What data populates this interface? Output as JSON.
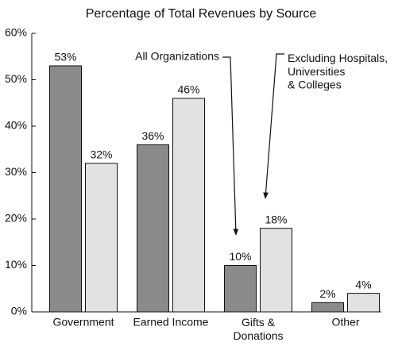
{
  "chart_data": {
    "type": "bar",
    "title": "Percentage of Total Revenues by Source",
    "categories": [
      "Government",
      "Earned Income",
      "Gifts &\nDonations",
      "Other"
    ],
    "series": [
      {
        "name": "All Organizations",
        "color": "#8a8a8a",
        "values": [
          53,
          36,
          10,
          2
        ],
        "value_labels": [
          "53%",
          "36%",
          "10%",
          "2%"
        ]
      },
      {
        "name": "Excluding Hospitals,\nUniversities\n& Colleges",
        "color": "#e2e2e2",
        "values": [
          32,
          46,
          18,
          4
        ],
        "value_labels": [
          "32%",
          "46%",
          "18%",
          "4%"
        ]
      }
    ],
    "ylim": [
      0,
      60
    ],
    "yticks": [
      {
        "value": 0,
        "label": "0%"
      },
      {
        "value": 10,
        "label": "10%"
      },
      {
        "value": 20,
        "label": "20%"
      },
      {
        "value": 30,
        "label": "30%"
      },
      {
        "value": 40,
        "label": "40%"
      },
      {
        "value": 50,
        "label": "50%"
      },
      {
        "value": 60,
        "label": "60%"
      }
    ]
  }
}
